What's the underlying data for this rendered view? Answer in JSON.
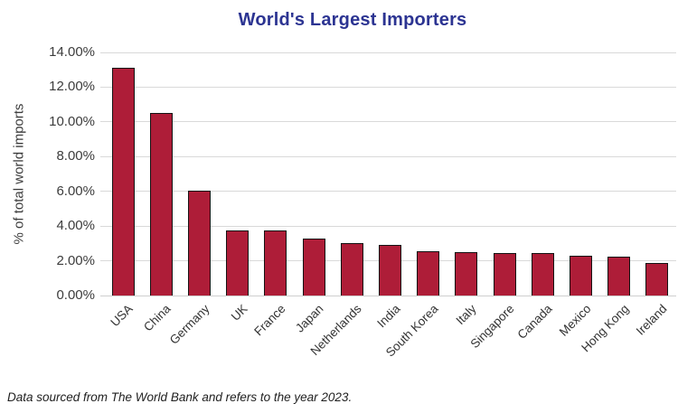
{
  "title": "World's Largest Importers",
  "footer": "Data sourced from The World Bank and refers to the year 2023.",
  "colors": {
    "title": "#2c3492",
    "bar_fill": "#ae1d38",
    "bar_border": "#141414",
    "gridline": "#d9d9d9",
    "axis_text": "#3c3c3c"
  },
  "chart_data": {
    "type": "bar",
    "title": "World's Largest Importers",
    "categories": [
      "USA",
      "China",
      "Germany",
      "UK",
      "France",
      "Japan",
      "Netherlands",
      "India",
      "South Korea",
      "Italy",
      "Singapore",
      "Canada",
      "Mexico",
      "Hong Kong",
      "Ireland"
    ],
    "values": [
      13.1,
      10.5,
      6.05,
      3.75,
      3.75,
      3.3,
      3.0,
      2.9,
      2.55,
      2.5,
      2.45,
      2.45,
      2.3,
      2.25,
      1.85
    ],
    "xlabel": "",
    "ylabel": "% of total world imports",
    "ylim": [
      0,
      14
    ],
    "ytick_values": [
      0,
      2,
      4,
      6,
      8,
      10,
      12,
      14
    ],
    "ytick_labels": [
      "0.00%",
      "2.00%",
      "4.00%",
      "6.00%",
      "8.00%",
      "10.00%",
      "12.00%",
      "14.00%"
    ],
    "grid": true,
    "legend": false,
    "bar_outline": true,
    "annotation": "Data sourced from The World Bank and refers to the year 2023."
  }
}
